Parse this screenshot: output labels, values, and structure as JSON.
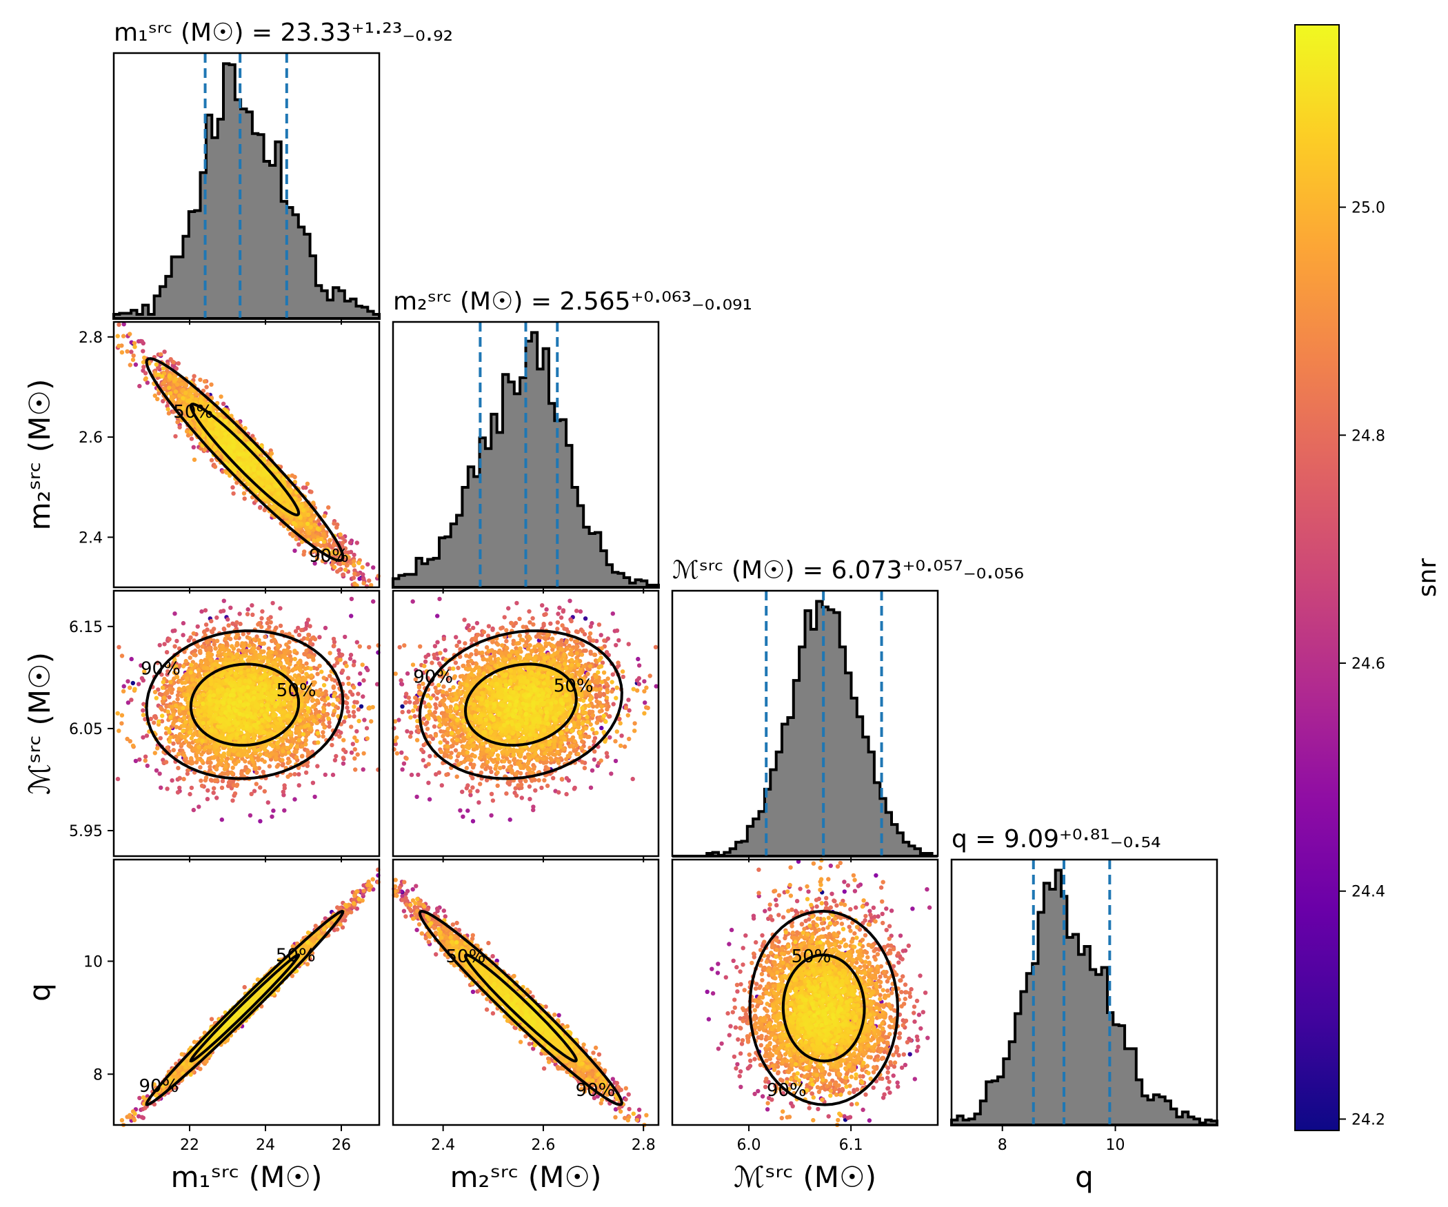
{
  "chart_data": {
    "type": "corner",
    "parameters": [
      {
        "key": "m1",
        "label": "m₁ˢʳᶜ (M☉)",
        "title": "m₁ˢʳᶜ (M☉) = 23.33⁺¹·²³₋₀.₉₂",
        "median": 23.33,
        "lower": 22.41,
        "upper": 24.56,
        "range": [
          20.0,
          27.0
        ],
        "ticks": [
          22,
          24,
          26
        ],
        "tick_labels": [
          "22",
          "24",
          "26"
        ]
      },
      {
        "key": "m2",
        "label": "m₂ˢʳᶜ (M☉)",
        "title": "m₂ˢʳᶜ (M☉) = 2.565⁺⁰·⁰⁶³₋₀.₀₉₁",
        "median": 2.565,
        "lower": 2.474,
        "upper": 2.628,
        "range": [
          2.3,
          2.83
        ],
        "ticks": [
          2.4,
          2.6,
          2.8
        ],
        "tick_labels": [
          "2.4",
          "2.6",
          "2.8"
        ]
      },
      {
        "key": "mc",
        "label": "ℳˢʳᶜ (M☉)",
        "title": "ℳˢʳᶜ (M☉) = 6.073⁺⁰·⁰⁵⁷₋₀.₀₅₆",
        "median": 6.073,
        "lower": 6.017,
        "upper": 6.13,
        "range": [
          5.925,
          6.185
        ],
        "ticks": [
          5.95,
          6.05,
          6.15
        ],
        "tick_labels": [
          "5.95",
          "6.05",
          "6.15"
        ],
        "xticks": [
          6.0,
          6.1
        ],
        "xtick_labels": [
          "6.0",
          "6.1"
        ]
      },
      {
        "key": "q",
        "label": "q",
        "title": "q = 9.09⁺⁰·⁸¹₋₀.₅₄",
        "median": 9.09,
        "lower": 8.55,
        "upper": 9.9,
        "range": [
          7.1,
          11.8
        ],
        "ticks": [
          8,
          10
        ],
        "tick_labels": [
          "8",
          "10"
        ]
      }
    ],
    "contour_levels": [
      "50%",
      "90%"
    ],
    "colorbar": {
      "label": "snr",
      "range": [
        24.19,
        25.16
      ],
      "ticks": [
        24.2,
        24.4,
        24.6,
        24.8,
        25.0
      ],
      "tick_labels": [
        "24.2",
        "24.4",
        "24.6",
        "24.8",
        "25.0"
      ],
      "colormap": "plasma"
    },
    "colors": {
      "histogram_fill": "#808080",
      "histogram_edge": "#000000",
      "quantile_line": "#1f77b4",
      "contour": "#000000"
    },
    "grid": false
  }
}
